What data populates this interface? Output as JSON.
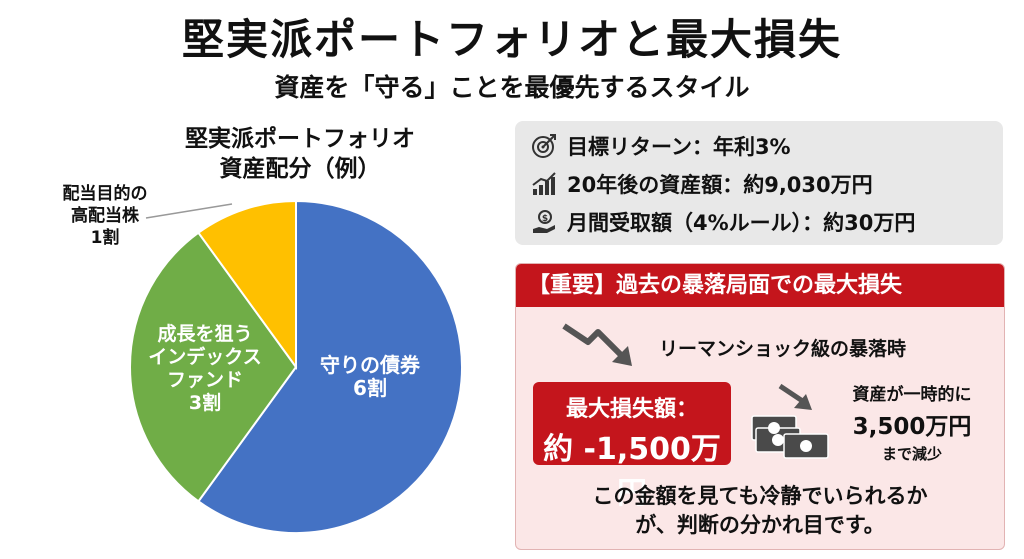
{
  "header": {
    "title": "堅実派ポートフォリオと最大損失",
    "subtitle": "資産を「守る」ことを最優先するスタイル"
  },
  "pie": {
    "title_line1": "堅実派ポートフォリオ",
    "title_line2": "資産配分（例）",
    "slices": [
      {
        "lines": [
          "守りの債券",
          "6割"
        ],
        "share": 0.6,
        "color": "#4472c4"
      },
      {
        "lines": [
          "成長を狙う",
          "インデックス",
          "ファンド",
          "3割"
        ],
        "share": 0.3,
        "color": "#70ad47"
      },
      {
        "lines": [
          "配当目的の",
          "高配当株",
          "1割"
        ],
        "share": 0.1,
        "color": "#ffc000"
      }
    ]
  },
  "info": {
    "rows": [
      {
        "icon": "target-icon",
        "text": "目標リターン：年利3%"
      },
      {
        "icon": "growth-chart-icon",
        "text": "20年後の資産額：約9,030万円"
      },
      {
        "icon": "money-hand-icon",
        "text": "月間受取額（4%ルール）：約30万円"
      }
    ]
  },
  "warning": {
    "header": "【重要】過去の暴落局面での最大損失",
    "crash_label": "リーマンショック級の暴落時",
    "loss_label": "最大損失額：",
    "loss_value": "約 -1,500万円",
    "asset_line1": "資産が一時的に",
    "asset_line2": "3,500万円",
    "asset_line3": "まで減少",
    "conclusion_line1": "この金額を見ても冷静でいられるか",
    "conclusion_line2": "が、判断の分かれ目です。"
  },
  "colors": {
    "accent_red": "#c4151c",
    "bond": "#4472c4",
    "index": "#70ad47",
    "dividend": "#ffc000"
  }
}
